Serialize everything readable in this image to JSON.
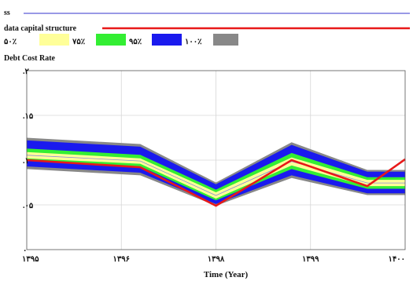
{
  "chart_data": {
    "type": "area",
    "legend_top": [
      {
        "name": "ss",
        "color": "#3333cc"
      },
      {
        "name": "data capital structure",
        "color": "#e81919"
      }
    ],
    "title": "Debt Cost Rate",
    "xlabel": "Time (Year)",
    "x_tick_labels": [
      "۱۳۹۵",
      "۱۳۹۶",
      "۱۳۹۸",
      "۱۳۹۹",
      "۱۴۰۰"
    ],
    "y_tick_labels": [
      "۰",
      ".۰۵",
      ".۱",
      ".۱۵",
      ".۲"
    ],
    "xlim": [
      1395,
      1400
    ],
    "ylim": [
      0,
      0.2
    ],
    "grid": true,
    "confidence_bands": [
      {
        "label": "۵۰٪",
        "color": "#ffff99"
      },
      {
        "label": "۷۵٪",
        "color": "#33ee33"
      },
      {
        "label": "۹۵٪",
        "color": "#1a1aee"
      },
      {
        "label": "۱۰۰٪",
        "color": "#888888"
      }
    ],
    "x": [
      1395,
      1396.5,
      1397.5,
      1398.5,
      1399.5,
      1400
    ],
    "bands": {
      "b100": {
        "upper": [
          0.125,
          0.118,
          0.075,
          0.12,
          0.089,
          0.089
        ],
        "lower": [
          0.09,
          0.083,
          0.049,
          0.08,
          0.061,
          0.061
        ]
      },
      "b95": {
        "upper": [
          0.122,
          0.115,
          0.073,
          0.117,
          0.087,
          0.087
        ],
        "lower": [
          0.093,
          0.086,
          0.051,
          0.083,
          0.063,
          0.063
        ]
      },
      "b75": {
        "upper": [
          0.113,
          0.106,
          0.067,
          0.108,
          0.081,
          0.081
        ],
        "lower": [
          0.099,
          0.093,
          0.055,
          0.09,
          0.068,
          0.068
        ]
      },
      "b50": {
        "upper": [
          0.109,
          0.102,
          0.064,
          0.103,
          0.078,
          0.078
        ],
        "lower": [
          0.102,
          0.096,
          0.057,
          0.094,
          0.071,
          0.071
        ]
      }
    },
    "series": [
      {
        "name": "data capital structure",
        "color": "#e81919",
        "y": [
          0.1,
          0.092,
          0.049,
          0.1,
          0.071,
          0.101
        ]
      }
    ]
  }
}
